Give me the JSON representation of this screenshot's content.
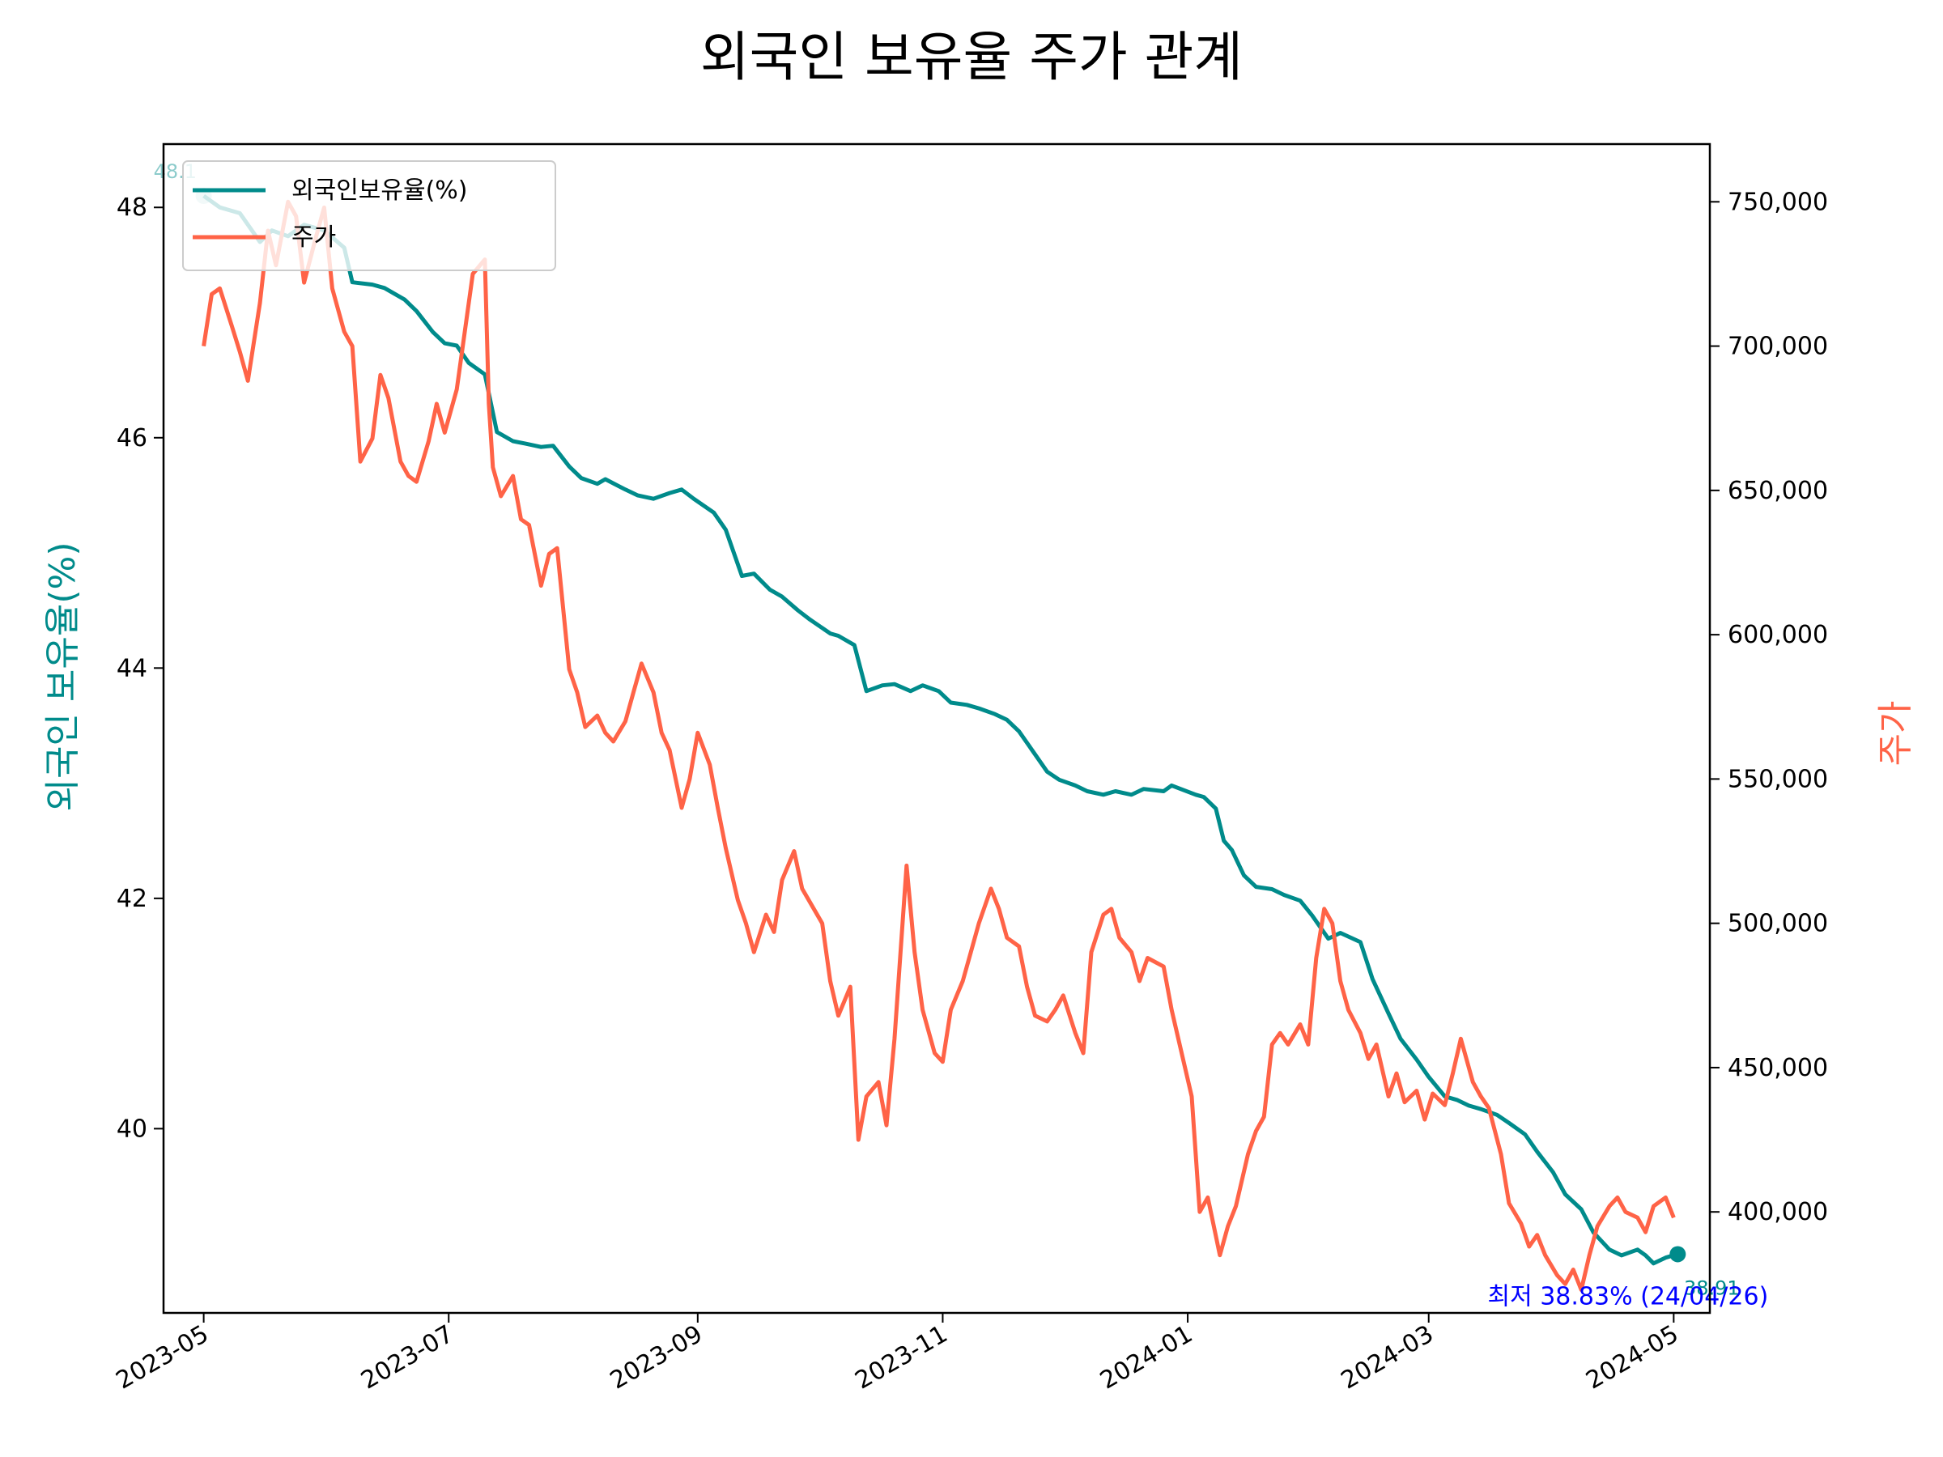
{
  "chart_data": {
    "type": "line",
    "title": "외국인 보유율 주가 관계",
    "ylabel": "외국인 보유율(%)",
    "y2label": "주가",
    "ylim": [
      38.4,
      48.55
    ],
    "y2lim": [
      365000,
      770000
    ],
    "yticks": [
      40,
      42,
      44,
      46,
      48
    ],
    "y2ticks": [
      400000,
      450000,
      500000,
      550000,
      600000,
      650000,
      700000,
      750000
    ],
    "y2tick_labels": [
      "400,000",
      "450,000",
      "500,000",
      "550,000",
      "600,000",
      "650,000",
      "700,000",
      "750,000"
    ],
    "xlim": [
      "2023-04-21",
      "2024-05-10"
    ],
    "xticks": [
      "2023-05-01",
      "2023-07-01",
      "2023-09-01",
      "2023-11-01",
      "2024-01-01",
      "2024-03-01",
      "2024-05-01"
    ],
    "xtick_labels": [
      "2023-05",
      "2023-07",
      "2023-09",
      "2023-11",
      "2024-01",
      "2024-03",
      "2024-05"
    ],
    "legend_position": "upper-left",
    "grid": false,
    "colors": {
      "holding": "#008b8b",
      "price": "#ff6347",
      "annotation": "#0000ff"
    },
    "series": [
      {
        "name": "외국인보유율(%)",
        "axis": "left",
        "points": [
          [
            "2023-05-01",
            48.1
          ],
          [
            "2023-05-05",
            48.0
          ],
          [
            "2023-05-10",
            47.95
          ],
          [
            "2023-05-12",
            47.85
          ],
          [
            "2023-05-15",
            47.7
          ],
          [
            "2023-05-18",
            47.8
          ],
          [
            "2023-05-22",
            47.75
          ],
          [
            "2023-05-26",
            47.85
          ],
          [
            "2023-05-31",
            47.8
          ],
          [
            "2023-06-05",
            47.65
          ],
          [
            "2023-06-07",
            47.35
          ],
          [
            "2023-06-12",
            47.33
          ],
          [
            "2023-06-15",
            47.3
          ],
          [
            "2023-06-20",
            47.2
          ],
          [
            "2023-06-23",
            47.1
          ],
          [
            "2023-06-27",
            46.92
          ],
          [
            "2023-06-30",
            46.82
          ],
          [
            "2023-07-03",
            46.8
          ],
          [
            "2023-07-06",
            46.65
          ],
          [
            "2023-07-10",
            46.55
          ],
          [
            "2023-07-13",
            46.05
          ],
          [
            "2023-07-17",
            45.97
          ],
          [
            "2023-07-20",
            45.95
          ],
          [
            "2023-07-24",
            45.92
          ],
          [
            "2023-07-27",
            45.93
          ],
          [
            "2023-07-31",
            45.75
          ],
          [
            "2023-08-03",
            45.65
          ],
          [
            "2023-08-07",
            45.6
          ],
          [
            "2023-08-09",
            45.64
          ],
          [
            "2023-08-14",
            45.55
          ],
          [
            "2023-08-17",
            45.5
          ],
          [
            "2023-08-21",
            45.47
          ],
          [
            "2023-08-25",
            45.52
          ],
          [
            "2023-08-28",
            45.55
          ],
          [
            "2023-08-31",
            45.47
          ],
          [
            "2023-09-05",
            45.35
          ],
          [
            "2023-09-08",
            45.2
          ],
          [
            "2023-09-12",
            44.8
          ],
          [
            "2023-09-15",
            44.82
          ],
          [
            "2023-09-19",
            44.68
          ],
          [
            "2023-09-22",
            44.62
          ],
          [
            "2023-09-26",
            44.5
          ],
          [
            "2023-09-29",
            44.42
          ],
          [
            "2023-10-04",
            44.3
          ],
          [
            "2023-10-06",
            44.28
          ],
          [
            "2023-10-10",
            44.2
          ],
          [
            "2023-10-13",
            43.8
          ],
          [
            "2023-10-17",
            43.85
          ],
          [
            "2023-10-20",
            43.86
          ],
          [
            "2023-10-24",
            43.8
          ],
          [
            "2023-10-27",
            43.85
          ],
          [
            "2023-10-31",
            43.8
          ],
          [
            "2023-11-03",
            43.7
          ],
          [
            "2023-11-07",
            43.68
          ],
          [
            "2023-11-10",
            43.65
          ],
          [
            "2023-11-14",
            43.6
          ],
          [
            "2023-11-17",
            43.55
          ],
          [
            "2023-11-20",
            43.45
          ],
          [
            "2023-11-23",
            43.3
          ],
          [
            "2023-11-27",
            43.1
          ],
          [
            "2023-11-30",
            43.03
          ],
          [
            "2023-12-04",
            42.98
          ],
          [
            "2023-12-07",
            42.93
          ],
          [
            "2023-12-11",
            42.9
          ],
          [
            "2023-12-14",
            42.93
          ],
          [
            "2023-12-18",
            42.9
          ],
          [
            "2023-12-21",
            42.95
          ],
          [
            "2023-12-26",
            42.93
          ],
          [
            "2023-12-28",
            42.98
          ],
          [
            "2024-01-03",
            42.9
          ],
          [
            "2024-01-05",
            42.88
          ],
          [
            "2024-01-08",
            42.78
          ],
          [
            "2024-01-10",
            42.5
          ],
          [
            "2024-01-12",
            42.42
          ],
          [
            "2024-01-15",
            42.2
          ],
          [
            "2024-01-18",
            42.1
          ],
          [
            "2024-01-22",
            42.08
          ],
          [
            "2024-01-25",
            42.03
          ],
          [
            "2024-01-29",
            41.98
          ],
          [
            "2024-02-01",
            41.85
          ],
          [
            "2024-02-05",
            41.65
          ],
          [
            "2024-02-08",
            41.7
          ],
          [
            "2024-02-13",
            41.62
          ],
          [
            "2024-02-16",
            41.3
          ],
          [
            "2024-02-20",
            41.0
          ],
          [
            "2024-02-23",
            40.78
          ],
          [
            "2024-02-27",
            40.6
          ],
          [
            "2024-03-01",
            40.45
          ],
          [
            "2024-03-05",
            40.28
          ],
          [
            "2024-03-08",
            40.25
          ],
          [
            "2024-03-11",
            40.2
          ],
          [
            "2024-03-14",
            40.17
          ],
          [
            "2024-03-18",
            40.12
          ],
          [
            "2024-03-21",
            40.05
          ],
          [
            "2024-03-25",
            39.95
          ],
          [
            "2024-03-28",
            39.8
          ],
          [
            "2024-04-01",
            39.62
          ],
          [
            "2024-04-04",
            39.43
          ],
          [
            "2024-04-08",
            39.3
          ],
          [
            "2024-04-11",
            39.1
          ],
          [
            "2024-04-15",
            38.95
          ],
          [
            "2024-04-18",
            38.9
          ],
          [
            "2024-04-22",
            38.95
          ],
          [
            "2024-04-24",
            38.9
          ],
          [
            "2024-04-26",
            38.83
          ],
          [
            "2024-04-29",
            38.88
          ],
          [
            "2024-05-02",
            38.91
          ]
        ]
      },
      {
        "name": "주가",
        "axis": "right",
        "points": [
          [
            "2023-05-01",
            700000
          ],
          [
            "2023-05-03",
            718000
          ],
          [
            "2023-05-05",
            720000
          ],
          [
            "2023-05-08",
            707000
          ],
          [
            "2023-05-10",
            698000
          ],
          [
            "2023-05-12",
            688000
          ],
          [
            "2023-05-15",
            715000
          ],
          [
            "2023-05-17",
            740000
          ],
          [
            "2023-05-19",
            728000
          ],
          [
            "2023-05-22",
            750000
          ],
          [
            "2023-05-24",
            745000
          ],
          [
            "2023-05-26",
            722000
          ],
          [
            "2023-05-29",
            738000
          ],
          [
            "2023-05-31",
            748000
          ],
          [
            "2023-06-02",
            720000
          ],
          [
            "2023-06-05",
            705000
          ],
          [
            "2023-06-07",
            700000
          ],
          [
            "2023-06-09",
            660000
          ],
          [
            "2023-06-12",
            668000
          ],
          [
            "2023-06-14",
            690000
          ],
          [
            "2023-06-16",
            682000
          ],
          [
            "2023-06-19",
            660000
          ],
          [
            "2023-06-21",
            655000
          ],
          [
            "2023-06-23",
            653000
          ],
          [
            "2023-06-26",
            667000
          ],
          [
            "2023-06-28",
            680000
          ],
          [
            "2023-06-30",
            670000
          ],
          [
            "2023-07-03",
            685000
          ],
          [
            "2023-07-05",
            705000
          ],
          [
            "2023-07-07",
            725000
          ],
          [
            "2023-07-10",
            730000
          ],
          [
            "2023-07-11",
            680000
          ],
          [
            "2023-07-12",
            658000
          ],
          [
            "2023-07-14",
            648000
          ],
          [
            "2023-07-17",
            655000
          ],
          [
            "2023-07-19",
            640000
          ],
          [
            "2023-07-21",
            638000
          ],
          [
            "2023-07-24",
            617000
          ],
          [
            "2023-07-26",
            628000
          ],
          [
            "2023-07-28",
            630000
          ],
          [
            "2023-07-31",
            588000
          ],
          [
            "2023-08-02",
            580000
          ],
          [
            "2023-08-04",
            568000
          ],
          [
            "2023-08-07",
            572000
          ],
          [
            "2023-08-09",
            566000
          ],
          [
            "2023-08-11",
            563000
          ],
          [
            "2023-08-14",
            570000
          ],
          [
            "2023-08-16",
            580000
          ],
          [
            "2023-08-18",
            590000
          ],
          [
            "2023-08-21",
            580000
          ],
          [
            "2023-08-23",
            566000
          ],
          [
            "2023-08-25",
            560000
          ],
          [
            "2023-08-28",
            540000
          ],
          [
            "2023-08-30",
            550000
          ],
          [
            "2023-09-01",
            566000
          ],
          [
            "2023-09-04",
            555000
          ],
          [
            "2023-09-06",
            540000
          ],
          [
            "2023-09-08",
            526000
          ],
          [
            "2023-09-11",
            508000
          ],
          [
            "2023-09-13",
            500000
          ],
          [
            "2023-09-15",
            490000
          ],
          [
            "2023-09-18",
            503000
          ],
          [
            "2023-09-20",
            497000
          ],
          [
            "2023-09-22",
            515000
          ],
          [
            "2023-09-25",
            525000
          ],
          [
            "2023-09-27",
            512000
          ],
          [
            "2023-10-02",
            500000
          ],
          [
            "2023-10-04",
            480000
          ],
          [
            "2023-10-06",
            468000
          ],
          [
            "2023-10-09",
            478000
          ],
          [
            "2023-10-11",
            425000
          ],
          [
            "2023-10-13",
            440000
          ],
          [
            "2023-10-16",
            445000
          ],
          [
            "2023-10-18",
            430000
          ],
          [
            "2023-10-20",
            460000
          ],
          [
            "2023-10-23",
            520000
          ],
          [
            "2023-10-25",
            490000
          ],
          [
            "2023-10-27",
            470000
          ],
          [
            "2023-10-30",
            455000
          ],
          [
            "2023-11-01",
            452000
          ],
          [
            "2023-11-03",
            470000
          ],
          [
            "2023-11-06",
            480000
          ],
          [
            "2023-11-08",
            490000
          ],
          [
            "2023-11-10",
            500000
          ],
          [
            "2023-11-13",
            512000
          ],
          [
            "2023-11-15",
            505000
          ],
          [
            "2023-11-17",
            495000
          ],
          [
            "2023-11-20",
            492000
          ],
          [
            "2023-11-22",
            478000
          ],
          [
            "2023-11-24",
            468000
          ],
          [
            "2023-11-27",
            466000
          ],
          [
            "2023-11-29",
            470000
          ],
          [
            "2023-12-01",
            475000
          ],
          [
            "2023-12-04",
            462000
          ],
          [
            "2023-12-06",
            455000
          ],
          [
            "2023-12-08",
            490000
          ],
          [
            "2023-12-11",
            503000
          ],
          [
            "2023-12-13",
            505000
          ],
          [
            "2023-12-15",
            495000
          ],
          [
            "2023-12-18",
            490000
          ],
          [
            "2023-12-20",
            480000
          ],
          [
            "2023-12-22",
            488000
          ],
          [
            "2023-12-26",
            485000
          ],
          [
            "2023-12-28",
            470000
          ],
          [
            "2024-01-02",
            440000
          ],
          [
            "2024-01-04",
            400000
          ],
          [
            "2024-01-06",
            405000
          ],
          [
            "2024-01-09",
            385000
          ],
          [
            "2024-01-11",
            395000
          ],
          [
            "2024-01-13",
            402000
          ],
          [
            "2024-01-16",
            420000
          ],
          [
            "2024-01-18",
            428000
          ],
          [
            "2024-01-20",
            433000
          ],
          [
            "2024-01-22",
            458000
          ],
          [
            "2024-01-24",
            462000
          ],
          [
            "2024-01-26",
            458000
          ],
          [
            "2024-01-29",
            465000
          ],
          [
            "2024-01-31",
            458000
          ],
          [
            "2024-02-02",
            488000
          ],
          [
            "2024-02-04",
            505000
          ],
          [
            "2024-02-06",
            500000
          ],
          [
            "2024-02-08",
            480000
          ],
          [
            "2024-02-10",
            470000
          ],
          [
            "2024-02-13",
            462000
          ],
          [
            "2024-02-15",
            453000
          ],
          [
            "2024-02-17",
            458000
          ],
          [
            "2024-02-20",
            440000
          ],
          [
            "2024-02-22",
            448000
          ],
          [
            "2024-02-24",
            438000
          ],
          [
            "2024-02-27",
            442000
          ],
          [
            "2024-02-29",
            432000
          ],
          [
            "2024-03-02",
            441000
          ],
          [
            "2024-03-05",
            437000
          ],
          [
            "2024-03-07",
            448000
          ],
          [
            "2024-03-09",
            460000
          ],
          [
            "2024-03-12",
            445000
          ],
          [
            "2024-03-14",
            440000
          ],
          [
            "2024-03-16",
            436000
          ],
          [
            "2024-03-19",
            420000
          ],
          [
            "2024-03-21",
            403000
          ],
          [
            "2024-03-24",
            396000
          ],
          [
            "2024-03-26",
            388000
          ],
          [
            "2024-03-28",
            392000
          ],
          [
            "2024-03-30",
            385000
          ],
          [
            "2024-04-02",
            378000
          ],
          [
            "2024-04-04",
            375000
          ],
          [
            "2024-04-06",
            380000
          ],
          [
            "2024-04-08",
            373000
          ],
          [
            "2024-04-10",
            385000
          ],
          [
            "2024-04-12",
            395000
          ],
          [
            "2024-04-15",
            402000
          ],
          [
            "2024-04-17",
            405000
          ],
          [
            "2024-04-19",
            400000
          ],
          [
            "2024-04-22",
            398000
          ],
          [
            "2024-04-24",
            393000
          ],
          [
            "2024-04-26",
            402000
          ],
          [
            "2024-04-29",
            405000
          ],
          [
            "2024-05-01",
            398000
          ]
        ]
      }
    ],
    "annotations": {
      "start_value_label": "48.1",
      "end_value_label": "38.91",
      "min_label": "최저 38.83% (24/04/26)"
    }
  }
}
